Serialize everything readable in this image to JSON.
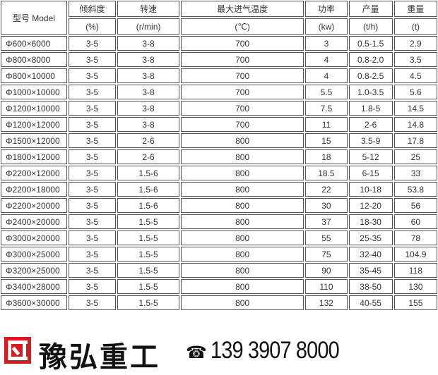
{
  "header": {
    "model": "型号 Model",
    "cols": [
      {
        "name": "倾斜度",
        "unit": "(%)"
      },
      {
        "name": "转速",
        "unit": "(r/min)"
      },
      {
        "name": "最大进气温度",
        "unit": "(℃)"
      },
      {
        "name": "功率",
        "unit": "(kw)"
      },
      {
        "name": "产量",
        "unit": "(t/h)"
      },
      {
        "name": "重量",
        "unit": "(t)"
      }
    ]
  },
  "rows": [
    [
      "Φ600×6000",
      "3-5",
      "3-8",
      "700",
      "3",
      "0.5-1.5",
      "2.9"
    ],
    [
      "Φ800×8000",
      "3-5",
      "3-8",
      "700",
      "4",
      "0.8-2.0",
      "3.5"
    ],
    [
      "Φ800×10000",
      "3-5",
      "3-8",
      "700",
      "4",
      "0.8-2.5",
      "4.5"
    ],
    [
      "Φ1000×10000",
      "3-5",
      "3-8",
      "700",
      "5.5",
      "1.0-3.5",
      "5.6"
    ],
    [
      "Φ1200×10000",
      "3-5",
      "3-8",
      "700",
      "7.5",
      "1.8-5",
      "14.5"
    ],
    [
      "Φ1200×12000",
      "3-5",
      "3-8",
      "700",
      "11",
      "2-6",
      "14.8"
    ],
    [
      "Φ1500×12000",
      "3-5",
      "2-6",
      "800",
      "15",
      "3.5-9",
      "17.8"
    ],
    [
      "Φ1800×12000",
      "3-5",
      "2-6",
      "800",
      "18",
      "5-12",
      "25"
    ],
    [
      "Φ2200×12000",
      "3-5",
      "1.5-6",
      "800",
      "18.5",
      "6-15",
      "33"
    ],
    [
      "Φ2200×18000",
      "3-5",
      "1.5-6",
      "800",
      "22",
      "10-18",
      "53.8"
    ],
    [
      "Φ2200×20000",
      "3-5",
      "1.5-6",
      "800",
      "30",
      "12-20",
      "56"
    ],
    [
      "Φ2400×20000",
      "3-5",
      "1.5-5",
      "800",
      "37",
      "18-30",
      "60"
    ],
    [
      "Φ3000×20000",
      "3-5",
      "1.5-5",
      "800",
      "55",
      "25-35",
      "78"
    ],
    [
      "Φ3000×25000",
      "3-5",
      "1.5-5",
      "800",
      "75",
      "32-40",
      "104.9"
    ],
    [
      "Φ3200×25000",
      "3-5",
      "1.5-5",
      "800",
      "90",
      "35-45",
      "118"
    ],
    [
      "Φ3400×28000",
      "3-5",
      "1.5-5",
      "800",
      "110",
      "38-50",
      "130"
    ],
    [
      "Φ3600×30000",
      "3-5",
      "1.5-5",
      "800",
      "132",
      "40-55",
      "155"
    ]
  ],
  "footer": {
    "brand": "豫弘重工",
    "phone": "139 3907 8000",
    "logo_color": "#d71920",
    "icon": "telephone-icon"
  }
}
